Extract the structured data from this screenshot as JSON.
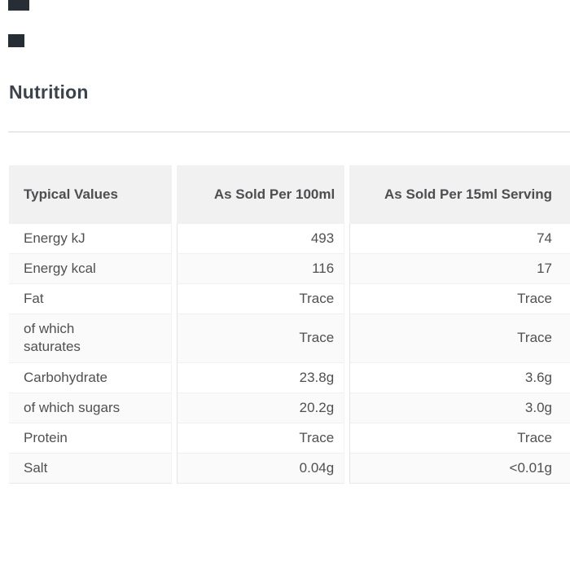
{
  "page": {
    "heading": "Nutrition"
  },
  "decorations": {
    "clipped_dark_element_color": "#272d35"
  },
  "colors": {
    "page_background": "#ffffff",
    "heading_text": "#3d434c",
    "table_header_background": "#f1f1f1",
    "table_header_text": "#4d4e51",
    "table_body_text": "#4f5052",
    "table_alt_row_background": "#fafafa",
    "divider": "#e9e9e9"
  },
  "table": {
    "columns": [
      {
        "label": "Typical Values",
        "align": "left"
      },
      {
        "label": "As Sold Per 100ml",
        "align": "right"
      },
      {
        "label": "As Sold Per 15ml Serving",
        "align": "right"
      }
    ],
    "rows": [
      {
        "label": "Energy kJ",
        "per_100ml": "493",
        "per_15ml_serving": "74"
      },
      {
        "label": "Energy kcal",
        "per_100ml": "116",
        "per_15ml_serving": "17"
      },
      {
        "label": "Fat",
        "per_100ml": "Trace",
        "per_15ml_serving": "Trace"
      },
      {
        "label": "of which\nsaturates",
        "per_100ml": "Trace",
        "per_15ml_serving": "Trace"
      },
      {
        "label": "Carbohydrate",
        "per_100ml": "23.8g",
        "per_15ml_serving": "3.6g"
      },
      {
        "label": "of which sugars",
        "per_100ml": "20.2g",
        "per_15ml_serving": "3.0g"
      },
      {
        "label": "Protein",
        "per_100ml": "Trace",
        "per_15ml_serving": "Trace"
      },
      {
        "label": "Salt",
        "per_100ml": "0.04g",
        "per_15ml_serving": "<0.01g"
      }
    ]
  }
}
